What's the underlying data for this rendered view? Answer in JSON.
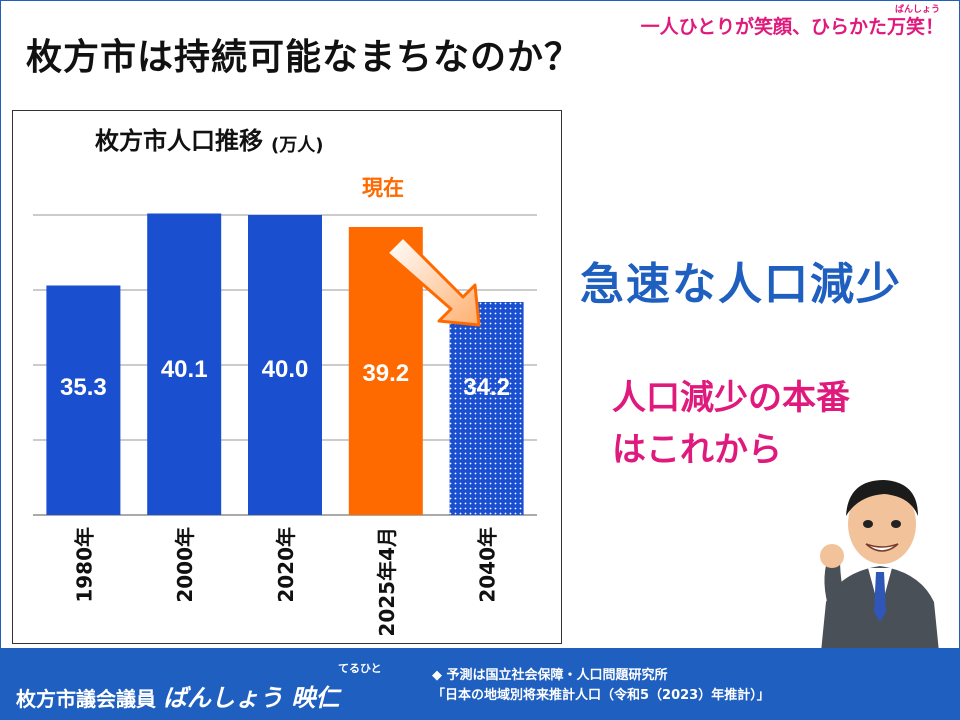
{
  "header": {
    "title": "枚方市は持続可能なまちなのか？",
    "slogan": "一人ひとりが笑顔、ひらかた万笑！",
    "slogan_ruby": "ばんしょう"
  },
  "chart_data": {
    "type": "bar",
    "title": "枚方市人口推移",
    "unit": "(万人)",
    "categories": [
      "1980年",
      "2000年",
      "2020年",
      "2025年4月",
      "2040年"
    ],
    "values": [
      35.3,
      40.1,
      40.0,
      39.2,
      34.2
    ],
    "current_label": "現在",
    "current_index": 3,
    "projected_index": 4,
    "colors": {
      "actual": "#1a4fd0",
      "current": "#ff6a00",
      "projected": "#1a4fd0"
    },
    "ylim": [
      20,
      40
    ],
    "grid": true
  },
  "messages": {
    "main": "急速な人口減少",
    "sub_line1": "人口減少の本番",
    "sub_line2": "はこれから"
  },
  "footer": {
    "name_prefix": "枚方市議会議員 ",
    "name": "ばんしょう 映仁",
    "name_ruby": "てるひと",
    "note_line1": "◆ 予測は国立社会保障・人口問題研究所",
    "note_line2": "「日本の地域別将来推計人口（令和5（2023）年推計）」"
  }
}
